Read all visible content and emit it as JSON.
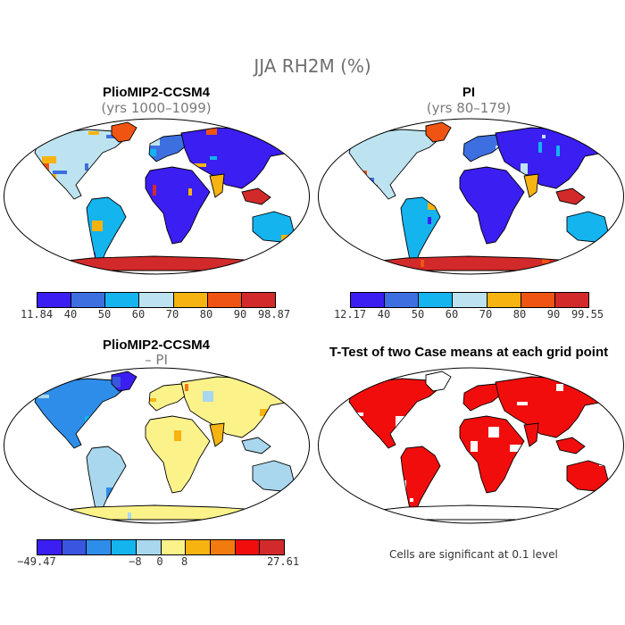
{
  "title": "JJA RH2M (%)",
  "panels": [
    {
      "title": "PlioMIP2-CCSM4",
      "subtitle": "(yrs 1000–1099)",
      "palette": "abs"
    },
    {
      "title": "PI",
      "subtitle": "(yrs 80–179)",
      "palette": "abs"
    },
    {
      "title": "PlioMIP2-CCSM4",
      "subtitle": "– PI",
      "palette": "diff"
    },
    {
      "title": "T-Test of two Case means at each grid point",
      "subtitle": "",
      "palette": "ttest"
    }
  ],
  "colorbars": {
    "abs1": {
      "labels": [
        "11.84",
        "40",
        "50",
        "60",
        "70",
        "80",
        "90",
        "98.87"
      ],
      "colors": [
        "#3b1ef2",
        "#3d6fe0",
        "#14b4ef",
        "#bde3f1",
        "#f7b410",
        "#f05412",
        "#d22a2a"
      ]
    },
    "abs2": {
      "labels": [
        "12.17",
        "40",
        "50",
        "60",
        "70",
        "80",
        "90",
        "99.55"
      ],
      "colors": [
        "#3b1ef2",
        "#3d6fe0",
        "#14b4ef",
        "#bde3f1",
        "#f7b410",
        "#f05412",
        "#d22a2a"
      ]
    },
    "diff": {
      "labels": [
        "−49.47",
        "−8",
        "0",
        "8",
        "27.61"
      ],
      "colors": [
        "#3b1ef2",
        "#3a55df",
        "#2e8de8",
        "#14b4ef",
        "#a8d7ee",
        "#fbf28a",
        "#f7b410",
        "#f27a0f",
        "#f20d0d",
        "#d22a2a"
      ]
    }
  },
  "note": "Cells are significant at 0.1 level"
}
